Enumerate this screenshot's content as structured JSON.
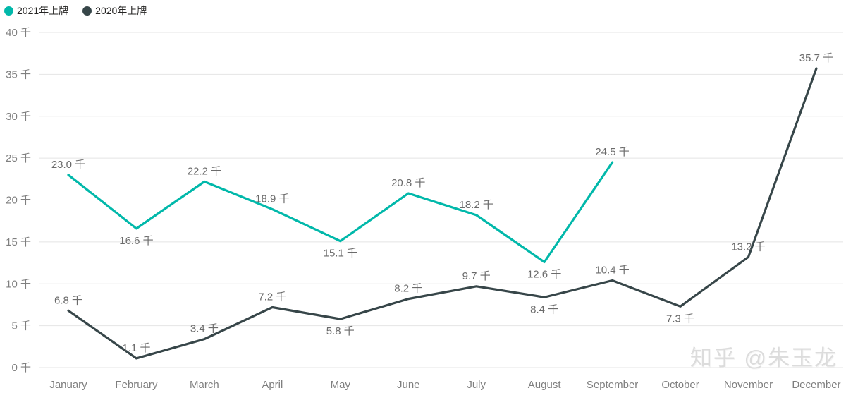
{
  "legend": {
    "items": [
      {
        "label": "2021年上牌",
        "color": "#01b8aa"
      },
      {
        "label": "2020年上牌",
        "color": "#374649"
      }
    ]
  },
  "watermark": "知乎 @朱玉龙",
  "chart_data": {
    "type": "line",
    "title": "",
    "categories": [
      "January",
      "February",
      "March",
      "April",
      "May",
      "June",
      "July",
      "August",
      "September",
      "October",
      "November",
      "December"
    ],
    "unit_suffix": "千",
    "series": [
      {
        "name": "2021年上牌",
        "color": "#01b8aa",
        "values": [
          23.0,
          16.6,
          22.2,
          18.9,
          15.1,
          20.8,
          18.2,
          12.6,
          24.5
        ],
        "label_positions": [
          "above",
          "below",
          "above",
          "above",
          "below",
          "above",
          "above",
          "below",
          "above"
        ]
      },
      {
        "name": "2020年上牌",
        "color": "#374649",
        "values": [
          6.8,
          1.1,
          3.4,
          7.2,
          5.8,
          8.2,
          9.7,
          8.4,
          10.4,
          7.3,
          13.2,
          35.7
        ],
        "label_positions": [
          "above",
          "above",
          "above",
          "above",
          "below",
          "above",
          "above",
          "below",
          "above",
          "below",
          "above",
          "above"
        ]
      }
    ],
    "y_axis": {
      "min": 0,
      "max": 40,
      "ticks": [
        0,
        5,
        10,
        15,
        20,
        25,
        30,
        35,
        40
      ],
      "tick_suffix": "千"
    },
    "grid": true,
    "legend_position": "top-left",
    "data_labels": true
  }
}
